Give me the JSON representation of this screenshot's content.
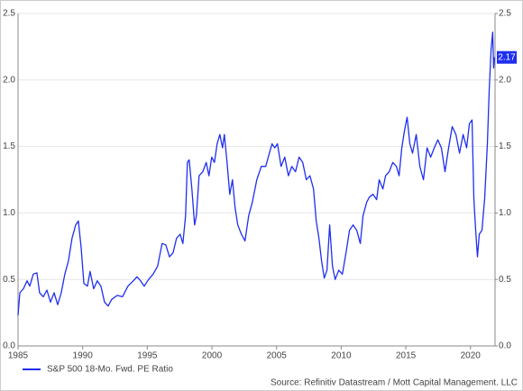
{
  "chart_data": {
    "type": "line",
    "source": "Source: Refinitiv Datastream / Mott Capital Management. LLC",
    "xlim": [
      1985,
      2021.9
    ],
    "xticks": [
      1985,
      1990,
      1995,
      2000,
      2005,
      2010,
      2015,
      2020
    ],
    "ylim": [
      0,
      2.5
    ],
    "yticks": [
      {
        "value": 0,
        "label": "0.0"
      },
      0.5,
      {
        "value": 1,
        "label": "1.0"
      },
      1.5,
      {
        "value": 2,
        "label": "2.0"
      },
      2.5
    ],
    "y2lim": [
      0,
      2.5
    ],
    "y2ticks": [
      {
        "value": 0,
        "label": "0.0"
      },
      0.5,
      {
        "value": 1,
        "label": "1.0"
      },
      1.5,
      {
        "value": 2,
        "label": "2.0"
      },
      2.5
    ],
    "grid": true,
    "legend": "bottom-left",
    "x": [
      1985.0,
      1985.14,
      1985.42,
      1985.7,
      1985.91,
      1986.18,
      1986.46,
      1986.67,
      1986.95,
      1987.23,
      1987.51,
      1987.79,
      1988.07,
      1988.34,
      1988.62,
      1988.9,
      1989.18,
      1989.46,
      1989.67,
      1989.88,
      1990.09,
      1990.37,
      1990.57,
      1990.85,
      1991.13,
      1991.41,
      1991.69,
      1991.97,
      1992.25,
      1992.67,
      1993.08,
      1993.5,
      1993.92,
      1994.2,
      1994.48,
      1994.76,
      1995.1,
      1995.45,
      1995.8,
      1996.15,
      1996.43,
      1996.71,
      1996.99,
      1997.26,
      1997.54,
      1997.75,
      1997.96,
      1998.1,
      1998.24,
      1998.45,
      1998.66,
      1998.8,
      1999.01,
      1999.29,
      1999.56,
      1999.77,
      1999.98,
      2000.19,
      2000.4,
      2000.61,
      2000.82,
      2000.96,
      2001.17,
      2001.38,
      2001.59,
      2001.79,
      2002.0,
      2002.28,
      2002.56,
      2002.84,
      2003.12,
      2003.47,
      2003.82,
      2004.16,
      2004.44,
      2004.65,
      2004.86,
      2005.07,
      2005.35,
      2005.63,
      2005.91,
      2006.18,
      2006.46,
      2006.74,
      2007.02,
      2007.3,
      2007.58,
      2007.86,
      2008.07,
      2008.28,
      2008.48,
      2008.69,
      2008.9,
      2009.11,
      2009.32,
      2009.53,
      2009.81,
      2010.09,
      2010.37,
      2010.64,
      2010.92,
      2011.2,
      2011.48,
      2011.69,
      2011.97,
      2012.18,
      2012.46,
      2012.74,
      2012.94,
      2013.22,
      2013.43,
      2013.71,
      2013.99,
      2014.27,
      2014.48,
      2014.69,
      2014.9,
      2015.1,
      2015.31,
      2015.52,
      2015.8,
      2016.08,
      2016.36,
      2016.64,
      2016.92,
      2017.2,
      2017.47,
      2017.75,
      2018.03,
      2018.31,
      2018.59,
      2018.87,
      2019.15,
      2019.43,
      2019.7,
      2019.91,
      2020.12,
      2020.26,
      2020.4,
      2020.54,
      2020.68,
      2020.89,
      2021.1,
      2021.31,
      2021.45,
      2021.59,
      2021.72,
      2021.79,
      2021.86
    ],
    "series": [
      {
        "name": "S&P 500 18-Mo. Fwd. PE Ratio",
        "color": "#1f2ff0",
        "last_value_label": "2.17",
        "values": [
          0.23,
          0.4,
          0.43,
          0.49,
          0.45,
          0.54,
          0.55,
          0.4,
          0.37,
          0.42,
          0.33,
          0.4,
          0.31,
          0.4,
          0.54,
          0.64,
          0.81,
          0.91,
          0.94,
          0.74,
          0.47,
          0.45,
          0.56,
          0.43,
          0.49,
          0.45,
          0.33,
          0.3,
          0.35,
          0.38,
          0.37,
          0.45,
          0.49,
          0.52,
          0.49,
          0.45,
          0.5,
          0.54,
          0.6,
          0.77,
          0.76,
          0.67,
          0.7,
          0.81,
          0.84,
          0.77,
          0.98,
          1.38,
          1.4,
          1.18,
          0.91,
          0.98,
          1.28,
          1.31,
          1.38,
          1.28,
          1.42,
          1.38,
          1.52,
          1.59,
          1.49,
          1.59,
          1.38,
          1.14,
          1.25,
          1.04,
          0.91,
          0.84,
          0.79,
          0.98,
          1.08,
          1.25,
          1.35,
          1.35,
          1.45,
          1.52,
          1.49,
          1.52,
          1.35,
          1.42,
          1.28,
          1.35,
          1.31,
          1.42,
          1.38,
          1.25,
          1.28,
          1.18,
          0.94,
          0.81,
          0.64,
          0.51,
          0.57,
          0.91,
          0.6,
          0.5,
          0.57,
          0.54,
          0.7,
          0.87,
          0.91,
          0.87,
          0.77,
          0.98,
          1.08,
          1.12,
          1.14,
          1.1,
          1.25,
          1.18,
          1.28,
          1.31,
          1.38,
          1.35,
          1.28,
          1.49,
          1.62,
          1.72,
          1.52,
          1.45,
          1.59,
          1.35,
          1.25,
          1.49,
          1.42,
          1.49,
          1.55,
          1.49,
          1.31,
          1.49,
          1.65,
          1.59,
          1.45,
          1.59,
          1.49,
          1.67,
          1.7,
          1.11,
          0.87,
          0.67,
          0.84,
          0.87,
          1.11,
          1.52,
          1.92,
          2.23,
          2.36,
          2.09,
          2.17
        ]
      }
    ]
  }
}
